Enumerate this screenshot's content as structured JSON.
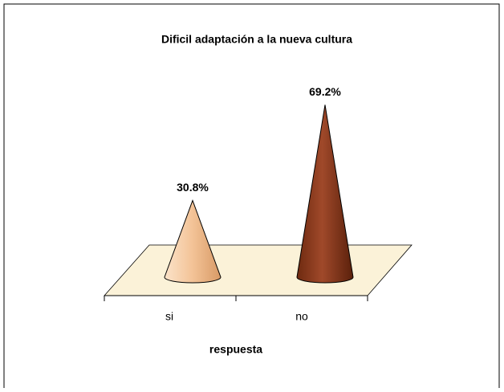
{
  "chart_data": {
    "type": "cone",
    "title": "Dificil adaptación a la nueva cultura",
    "x_label": "respuesta",
    "categories": [
      "si",
      "no"
    ],
    "values": [
      30.8,
      69.2
    ],
    "value_labels": [
      "30.8%",
      "69.2%"
    ],
    "colors": [
      "#f3c397",
      "#8e3c1c"
    ]
  }
}
